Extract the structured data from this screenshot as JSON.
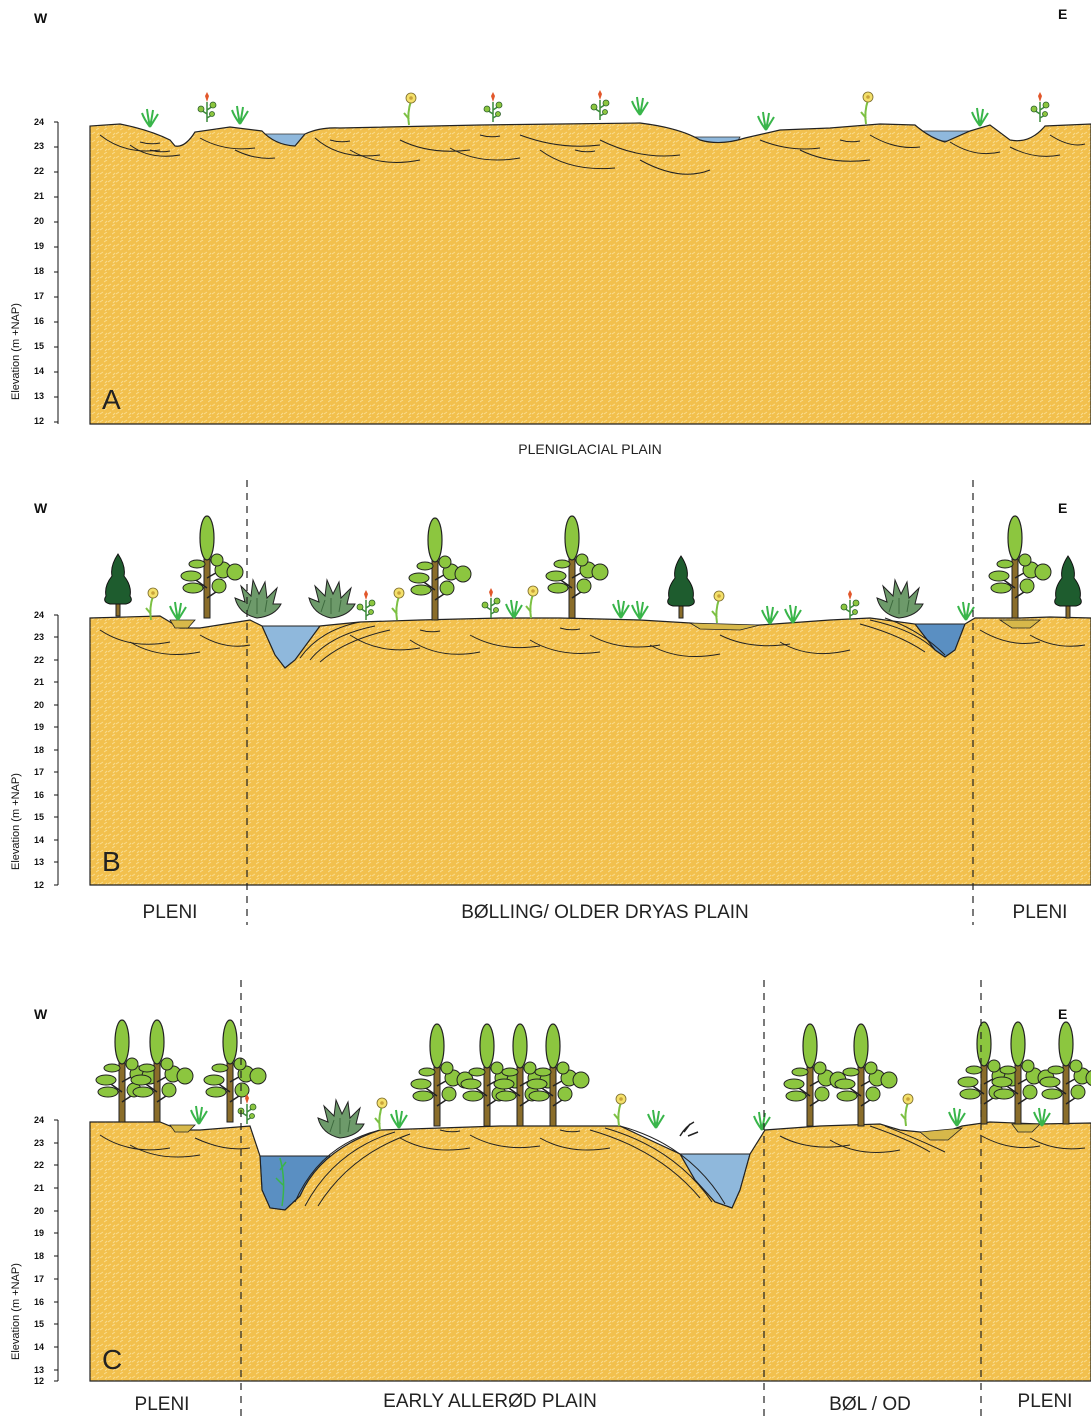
{
  "colors": {
    "sand": "#f2c04d",
    "sand_pattern": "#f7d98a",
    "water": "#8fb8dc",
    "water_dark": "#5a8fc2",
    "tree_leaf": "#8cc63f",
    "conifer": "#1e5c2e",
    "trunk": "#8a6d2a",
    "grass": "#39b54a",
    "shrub": "#6d9a6a",
    "flower_red": "#e2572b",
    "flower_yellow": "#f4e06a"
  },
  "panels": [
    {
      "id": "A",
      "letter": "A",
      "west": "W",
      "east": "E",
      "y_axis_label": "Elevation (m +NAP)",
      "ticks": [
        "24",
        "23",
        "22",
        "21",
        "20",
        "19",
        "18",
        "17",
        "16",
        "15",
        "14",
        "13",
        "12"
      ],
      "zones": [
        {
          "label": "PLENIGLACIAL PLAIN"
        }
      ]
    },
    {
      "id": "B",
      "letter": "B",
      "west": "W",
      "east": "E",
      "y_axis_label": "Elevation (m +NAP)",
      "ticks": [
        "24",
        "23",
        "22",
        "21",
        "20",
        "19",
        "18",
        "17",
        "16",
        "15",
        "14",
        "13",
        "12"
      ],
      "zones": [
        {
          "label": "PLENI"
        },
        {
          "label": "BØLLING/ OLDER DRYAS PLAIN"
        },
        {
          "label": "PLENI"
        }
      ]
    },
    {
      "id": "C",
      "letter": "C",
      "west": "W",
      "east": "E",
      "y_axis_label": "Elevation (m +NAP)",
      "ticks": [
        "24",
        "23",
        "22",
        "21",
        "20",
        "19",
        "18",
        "17",
        "16",
        "15",
        "14",
        "13",
        "12"
      ],
      "zones": [
        {
          "label": "PLENI"
        },
        {
          "label": "EARLY ALLERØD PLAIN"
        },
        {
          "label": "BØL / OD"
        },
        {
          "label": "PLENI"
        }
      ]
    }
  ]
}
